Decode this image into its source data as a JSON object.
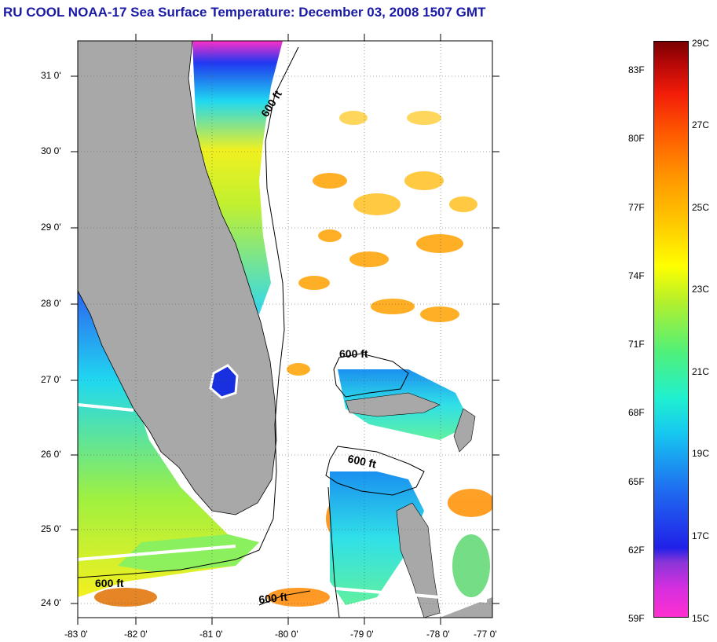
{
  "title": "RU COOL  NOAA-17  Sea Surface Temperature:  December 03, 2008 1507 GMT",
  "latitude_labels": [
    "31 0'",
    "30 0'",
    "29 0'",
    "28 0'",
    "27 0'",
    "26 0'",
    "25 0'",
    "24 0'"
  ],
  "longitude_labels": [
    "-83 0'",
    "-82 0'",
    "-81 0'",
    "-80 0'",
    "-79 0'",
    "-78 0'",
    "-77 0'"
  ],
  "contour_labels": [
    "600 ft",
    "600 ft",
    "600 ft",
    "600 ft",
    "600 ft"
  ],
  "colorbar": {
    "fahrenheit_labels": [
      "83F",
      "80F",
      "77F",
      "74F",
      "71F",
      "68F",
      "65F",
      "62F",
      "59F"
    ],
    "celsius_labels": [
      "29C",
      "27C",
      "25C",
      "23C",
      "21C",
      "19C",
      "17C",
      "15C"
    ]
  },
  "colors": {
    "title": "#1a1aa6",
    "land": "#a8a8a8",
    "warm": "#ff9900",
    "cold": "#ff2fd0"
  }
}
